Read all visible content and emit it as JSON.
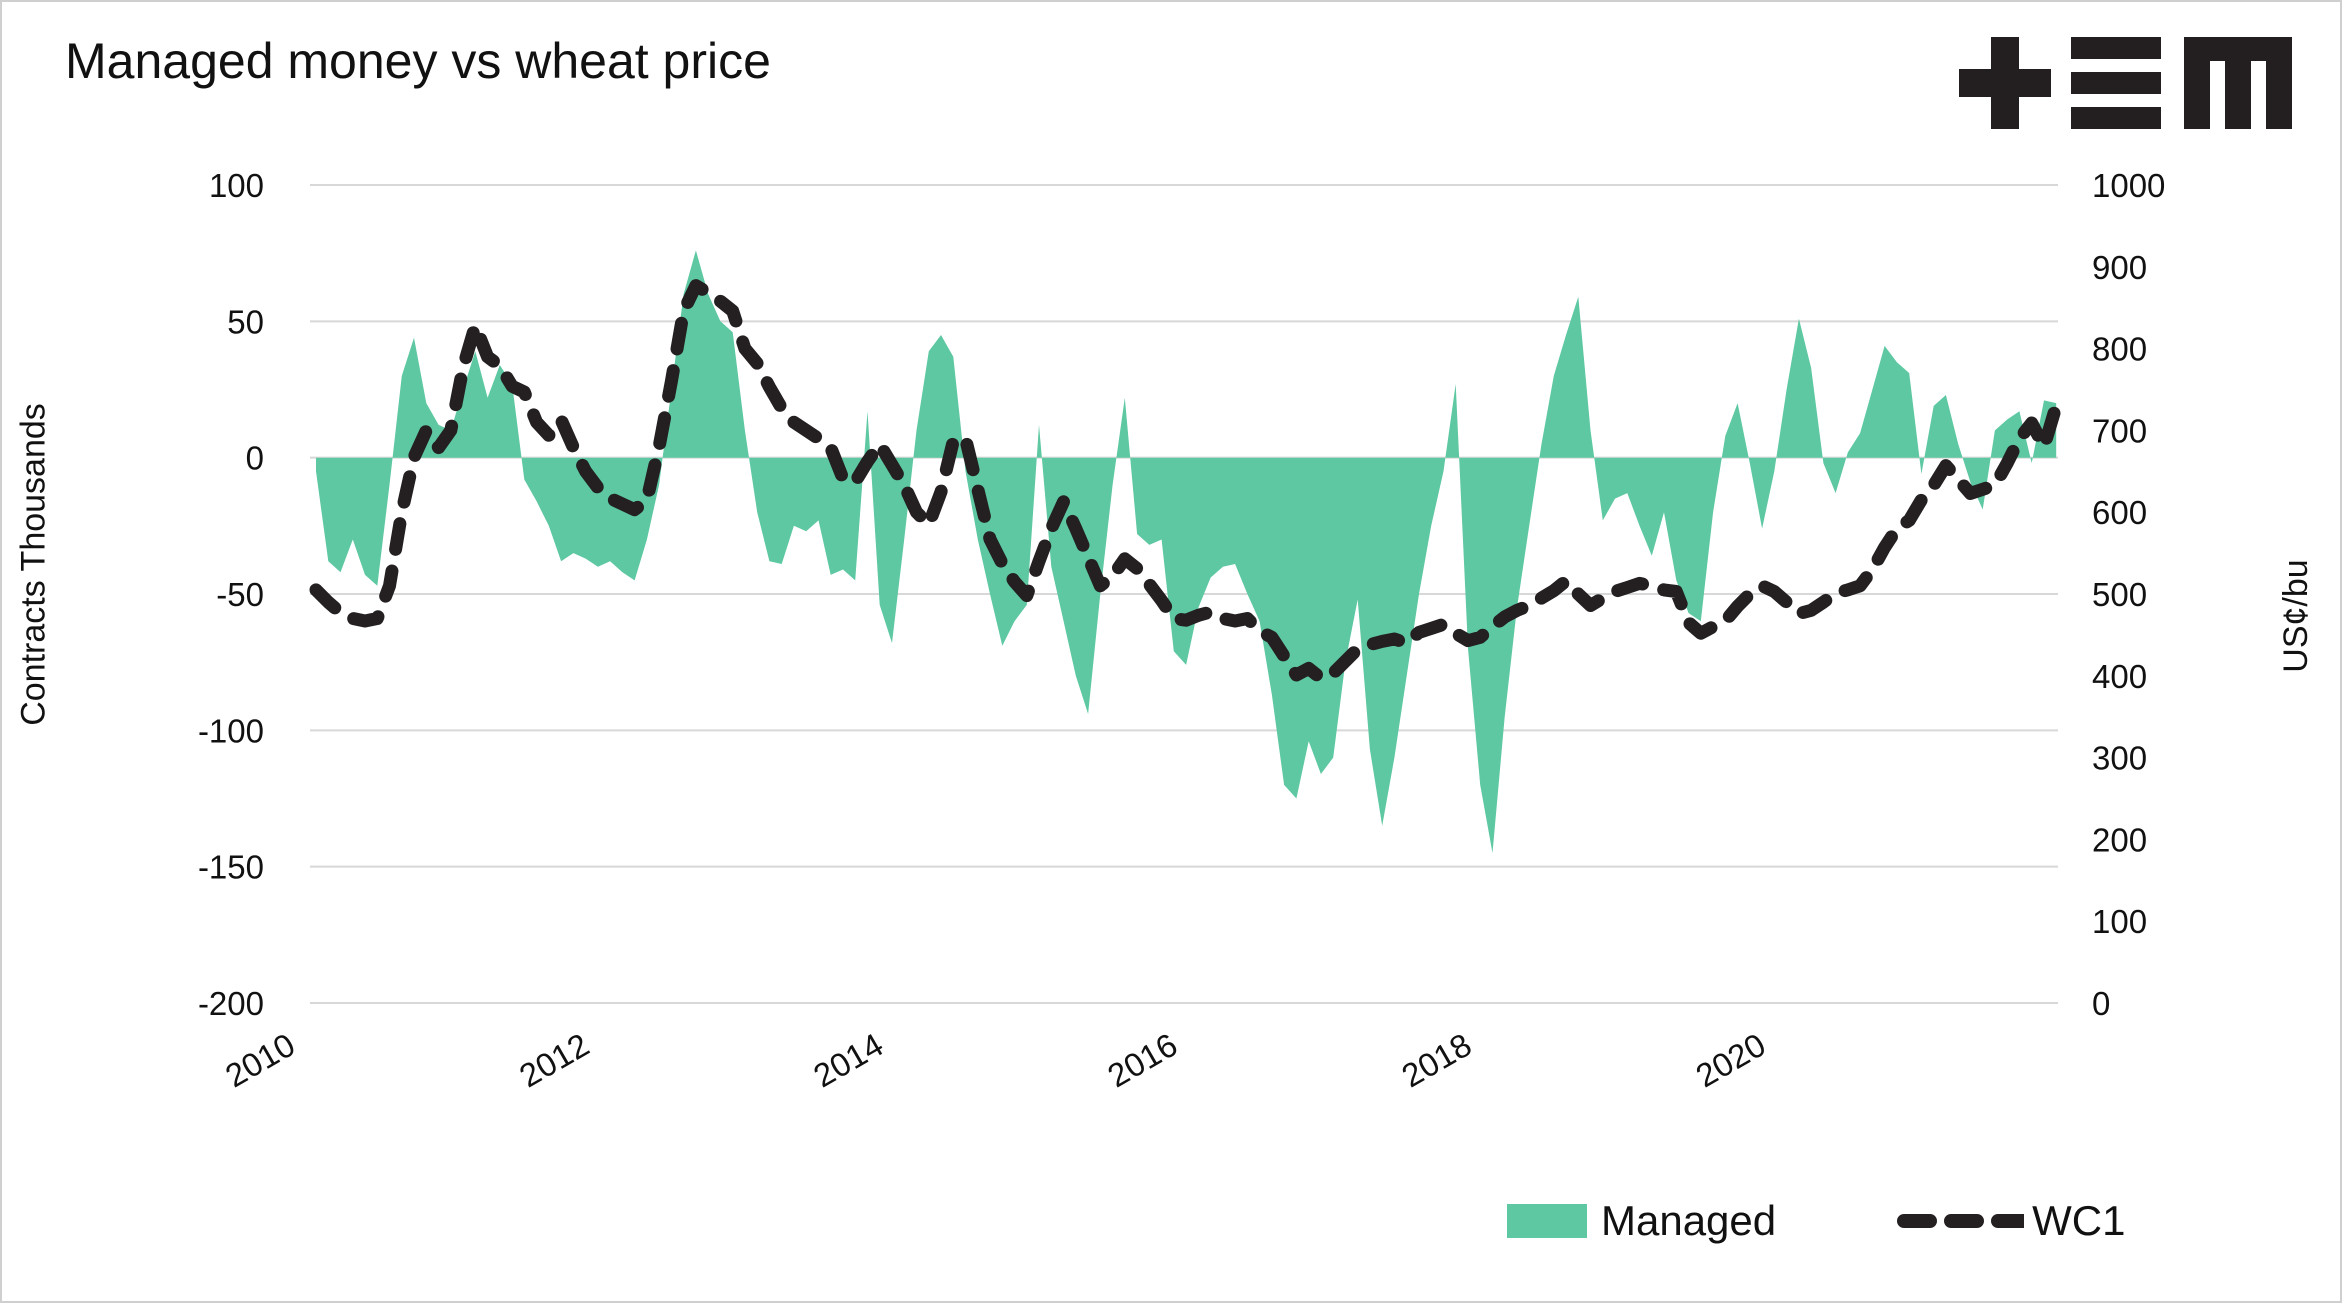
{
  "header": {
    "title": "Managed money vs wheat price",
    "logo": "plus-bars-m-logo"
  },
  "colors": {
    "area": "#5dc8a2",
    "dash_line": "#242021",
    "gridline": "#d8d8d8",
    "text": "#111111",
    "background": "#ffffff"
  },
  "legend": {
    "managed_label": "Managed",
    "wc1_label": "WC1",
    "position": "bottom-right"
  },
  "chart_data": {
    "type": "area",
    "subtype": "dual-axis area + dashed line",
    "title": "Managed money vs wheat price",
    "x_start": "2010-02",
    "x_end": "2021-12",
    "x_freq": "monthly",
    "x_tick_labels": [
      "2010",
      "2012",
      "2014",
      "2016",
      "2018",
      "2020"
    ],
    "grid": true,
    "legend_position": "bottom-right",
    "left_axis": {
      "label": "Contracts Thousands",
      "ticks": [
        100,
        50,
        0,
        -50,
        -100,
        -150,
        -200
      ],
      "range": [
        -200,
        100
      ]
    },
    "right_axis": {
      "label": "US¢/bu",
      "ticks": [
        1000,
        900,
        800,
        700,
        600,
        500,
        400,
        300,
        200,
        100,
        0
      ],
      "range": [
        0,
        1000
      ]
    },
    "series": [
      {
        "name": "Managed",
        "axis": "left",
        "style": "area",
        "values": [
          -5,
          -38,
          -42,
          -30,
          -43,
          -47,
          -10,
          30,
          44,
          20,
          12,
          10,
          25,
          39,
          22,
          34,
          27,
          -8,
          -16,
          -25,
          -38,
          -35,
          -37,
          -40,
          -38,
          -42,
          -45,
          -30,
          -10,
          25,
          60,
          76,
          60,
          50,
          46,
          10,
          -20,
          -38,
          -39,
          -25,
          -27,
          -23,
          -43,
          -41,
          -45,
          17,
          -54,
          -68,
          -30,
          10,
          39,
          45,
          37,
          -5,
          -30,
          -50,
          -69,
          -60,
          -54,
          12,
          -40,
          -60,
          -80,
          -94,
          -50,
          -10,
          22,
          -28,
          -32,
          -30,
          -71,
          -76,
          -55,
          -44,
          -40,
          -39,
          -50,
          -60,
          -87,
          -120,
          -125,
          -104,
          -116,
          -110,
          -75,
          -52,
          -107,
          -135,
          -110,
          -80,
          -50,
          -25,
          -5,
          27,
          -70,
          -120,
          -145,
          -95,
          -55,
          -25,
          5,
          30,
          45,
          59,
          10,
          -23,
          -15,
          -13,
          -25,
          -36,
          -20,
          -45,
          -57,
          -60,
          -20,
          8,
          20,
          -2,
          -26,
          -5,
          25,
          51,
          33,
          -2,
          -13,
          2,
          9,
          25,
          41,
          35,
          31,
          -6,
          19,
          23,
          5,
          -9,
          -19,
          10,
          14,
          17,
          -2,
          21,
          20
        ]
      },
      {
        "name": "WC1",
        "axis": "right",
        "style": "dashed-line",
        "values": [
          505,
          490,
          477,
          470,
          467,
          470,
          510,
          600,
          667,
          700,
          679,
          700,
          777,
          828,
          790,
          779,
          754,
          747,
          710,
          694,
          713,
          679,
          650,
          630,
          617,
          610,
          603,
          615,
          680,
          760,
          846,
          877,
          868,
          858,
          846,
          800,
          782,
          753,
          727,
          710,
          700,
          690,
          679,
          641,
          637,
          662,
          683,
          658,
          633,
          600,
          585,
          625,
          687,
          690,
          628,
          567,
          537,
          515,
          498,
          540,
          580,
          613,
          580,
          545,
          510,
          522,
          543,
          531,
          512,
          492,
          470,
          468,
          474,
          478,
          470,
          467,
          470,
          455,
          447,
          424,
          401,
          409,
          397,
          403,
          418,
          433,
          438,
          442,
          445,
          440,
          453,
          458,
          463,
          452,
          443,
          447,
          460,
          472,
          480,
          486,
          495,
          504,
          516,
          500,
          486,
          495,
          503,
          508,
          513,
          510,
          505,
          503,
          465,
          452,
          460,
          467,
          485,
          500,
          510,
          503,
          490,
          476,
          480,
          490,
          501,
          505,
          510,
          530,
          557,
          580,
          590,
          615,
          633,
          657,
          640,
          623,
          628,
          633,
          660,
          690,
          709,
          680,
          730
        ]
      }
    ]
  }
}
